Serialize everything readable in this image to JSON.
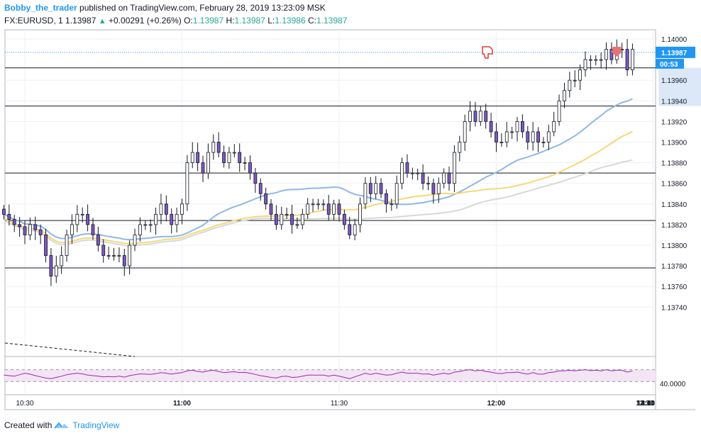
{
  "header": {
    "author": "Bobby_the_trader",
    "published_text": " published on TradingView.com, February 28, 2019 13:23:09 MSK",
    "symbol": "FX:EURUSD, 1",
    "last": "1.13987",
    "change": "+0.00291 (+0.26%)",
    "o_label": "O:",
    "o_value": "1.13987",
    "h_label": "H:",
    "h_value": "1.13987",
    "l_label": "L:",
    "l_value": "1.13986",
    "c_label": "C:",
    "c_value": "1.13987"
  },
  "footer": {
    "created_with": "Created with",
    "brand": "TradingView"
  },
  "colors": {
    "up": "#26a69a",
    "candle_fill": "#7e57c2",
    "candle_outline": "#131722",
    "ma_fast": "#90b7e8",
    "ma_mid": "#f5d77a",
    "ma_slow": "#d8d8d8",
    "rsi_line": "#9c27b0",
    "rsi_band": "#f3e5f5",
    "zone": "#d6e4f7",
    "price_tag": "#2196f3",
    "sell_arrow": "#e57373"
  },
  "chart_data": {
    "type": "candlestick",
    "symbol": "FX:EURUSD",
    "interval": "1",
    "x_ticks": [
      "10:30",
      "11:00",
      "11:30",
      "12:00",
      "12:30",
      "13:00",
      "13:30",
      "14:00",
      "14"
    ],
    "y_ticks": [
      "1.14000",
      "1.13960",
      "1.13940",
      "1.13920",
      "1.13900",
      "1.13880",
      "1.13860",
      "1.13840",
      "1.13820",
      "1.13800",
      "1.13780",
      "1.13760",
      "1.13740"
    ],
    "last_price_label": "1.13987",
    "countdown_label": "00:53",
    "rsi_tick_label": "40.0000",
    "ylim": [
      1.1373,
      1.1401
    ],
    "horizontal_levels": [
      1.13972,
      1.13935,
      1.1387,
      1.13824,
      1.13778
    ],
    "zone": {
      "start": "12:31",
      "end": "13:25",
      "low": 1.13935,
      "high": 1.13972
    },
    "close": [
      1.1383,
      1.13825,
      1.1382,
      1.13818,
      1.1381,
      1.1382,
      1.13815,
      1.1381,
      1.1379,
      1.1377,
      1.1378,
      1.1379,
      1.1381,
      1.1382,
      1.1383,
      1.1383,
      1.1382,
      1.1381,
      1.138,
      1.1379,
      1.1379,
      1.1379,
      1.1379,
      1.1378,
      1.138,
      1.1381,
      1.1382,
      1.1382,
      1.1382,
      1.1383,
      1.1384,
      1.1383,
      1.1382,
      1.1383,
      1.1384,
      1.1388,
      1.1389,
      1.1388,
      1.1387,
      1.1389,
      1.139,
      1.1389,
      1.1388,
      1.1389,
      1.1389,
      1.1388,
      1.1388,
      1.1387,
      1.1386,
      1.1385,
      1.1384,
      1.1383,
      1.1382,
      1.1383,
      1.1383,
      1.1382,
      1.1382,
      1.1383,
      1.1384,
      1.1384,
      1.1384,
      1.1384,
      1.1383,
      1.1384,
      1.1383,
      1.1382,
      1.1381,
      1.1382,
      1.1384,
      1.1386,
      1.1385,
      1.1386,
      1.1385,
      1.1384,
      1.1384,
      1.1386,
      1.1388,
      1.1387,
      1.1387,
      1.1387,
      1.1386,
      1.1386,
      1.1385,
      1.1386,
      1.1387,
      1.1386,
      1.1389,
      1.139,
      1.1392,
      1.1393,
      1.1392,
      1.1393,
      1.1392,
      1.1391,
      1.139,
      1.139,
      1.1391,
      1.1391,
      1.1392,
      1.1391,
      1.139,
      1.1391,
      1.139,
      1.139,
      1.1391,
      1.1392,
      1.1394,
      1.1395,
      1.1396,
      1.1396,
      1.1397,
      1.1398,
      1.1398,
      1.1398,
      1.1398,
      1.1399,
      1.1398,
      1.1399,
      1.1399,
      1.1397,
      1.1399
    ],
    "rsi": {
      "band_upper": 70,
      "band_lower": 30,
      "values": [
        52,
        50,
        48,
        53,
        58,
        55,
        50,
        46,
        42,
        40,
        44,
        48,
        53,
        56,
        58,
        56,
        52,
        50,
        48,
        46,
        47,
        46,
        48,
        45,
        50,
        53,
        56,
        55,
        54,
        57,
        60,
        58,
        55,
        58,
        60,
        66,
        68,
        64,
        62,
        66,
        68,
        64,
        60,
        62,
        63,
        60,
        61,
        58,
        54,
        50,
        47,
        44,
        42,
        47,
        48,
        44,
        45,
        48,
        52,
        52,
        52,
        52,
        48,
        52,
        48,
        44,
        40,
        46,
        52,
        58,
        54,
        58,
        55,
        52,
        53,
        58,
        62,
        58,
        58,
        58,
        55,
        56,
        52,
        55,
        58,
        55,
        62,
        64,
        68,
        70,
        66,
        68,
        64,
        62,
        58,
        57,
        60,
        60,
        62,
        58,
        55,
        60,
        55,
        55,
        60,
        62,
        66,
        66,
        68,
        66,
        68,
        70,
        67,
        68,
        66,
        70,
        66,
        68,
        68,
        62,
        66
      ]
    }
  }
}
